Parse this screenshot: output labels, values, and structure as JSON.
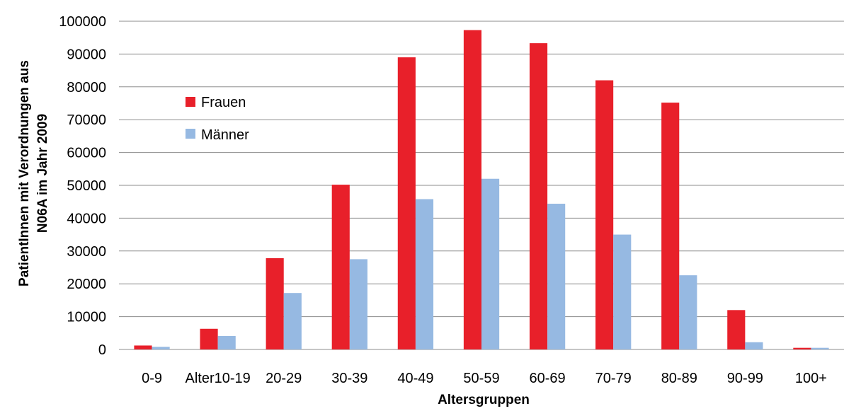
{
  "chart_data": {
    "type": "bar",
    "title": "",
    "xlabel": "Altersgruppen",
    "ylabel_lines": [
      "PatientInnen mit Verordnungen aus",
      "N06A im Jahr 2009"
    ],
    "categories": [
      "0-9",
      "Alter10-19",
      "20-29",
      "30-39",
      "40-49",
      "50-59",
      "60-69",
      "70-79",
      "80-89",
      "90-99",
      "100+"
    ],
    "series": [
      {
        "name": "Frauen",
        "color": "#e8202a",
        "values": [
          1200,
          6300,
          27800,
          50200,
          89000,
          97300,
          93300,
          82000,
          75200,
          12000,
          500
        ]
      },
      {
        "name": "Männer",
        "color": "#96b9e2",
        "values": [
          800,
          4100,
          17200,
          27500,
          45800,
          52000,
          44400,
          35000,
          22600,
          2200,
          500
        ]
      }
    ],
    "ylim": [
      0,
      100000
    ],
    "yticks": [
      "0",
      "10000",
      "20000",
      "30000",
      "40000",
      "50000",
      "60000",
      "70000",
      "80000",
      "90000",
      "100000"
    ],
    "grid": true,
    "legend_position": "top-left"
  }
}
